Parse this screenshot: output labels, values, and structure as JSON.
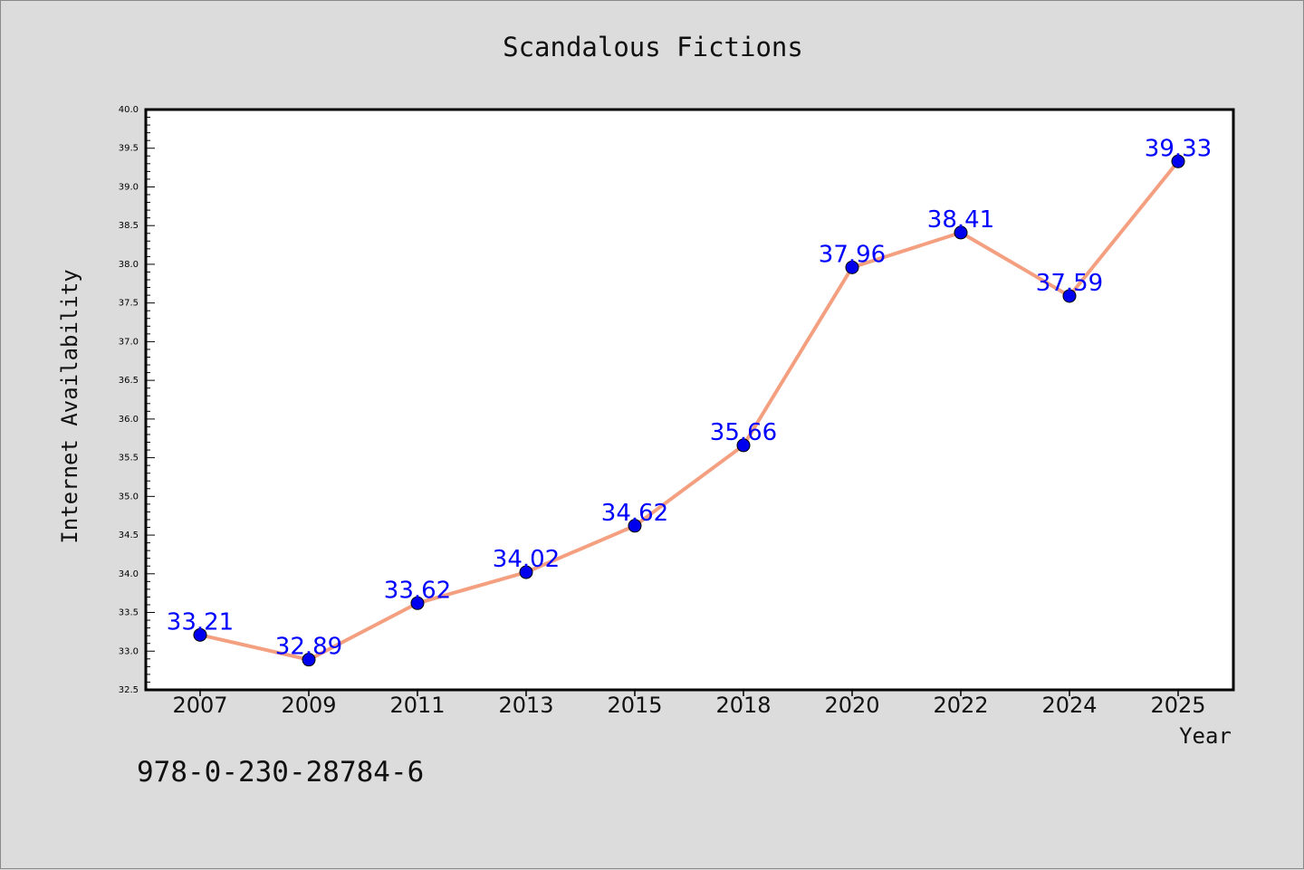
{
  "chart_data": {
    "type": "line",
    "title": "Scandalous Fictions",
    "xlabel": "Year",
    "ylabel": "Internet Availability",
    "categories": [
      "2007",
      "2009",
      "2011",
      "2013",
      "2015",
      "2018",
      "2020",
      "2022",
      "2024",
      "2025"
    ],
    "series": [
      {
        "values": [
          33.21,
          32.89,
          33.62,
          34.02,
          34.62,
          35.66,
          37.96,
          38.41,
          37.59,
          39.33
        ],
        "labels": [
          "33.21",
          "32.89",
          "33.62",
          "34.02",
          "34.62",
          "35.66",
          "37.96",
          "38.41",
          "37.59",
          "39.33"
        ]
      }
    ],
    "ylim": [
      32.5,
      40.0
    ],
    "yticks": [
      "32.5",
      "33.0",
      "33.5",
      "34.0",
      "34.5",
      "35.0",
      "35.5",
      "36.0",
      "36.5",
      "37.0",
      "37.5",
      "38.0",
      "38.5",
      "39.0",
      "39.5",
      "40.0"
    ],
    "grid": false,
    "colors": {
      "line": "#f4a080",
      "marker": "#0000ee",
      "label": "#0000ff",
      "axis": "#000000",
      "plot_bg": "#ffffff",
      "page_bg": "#dcdcdc"
    }
  },
  "footer": {
    "code": "978-0-230-28784-6"
  }
}
